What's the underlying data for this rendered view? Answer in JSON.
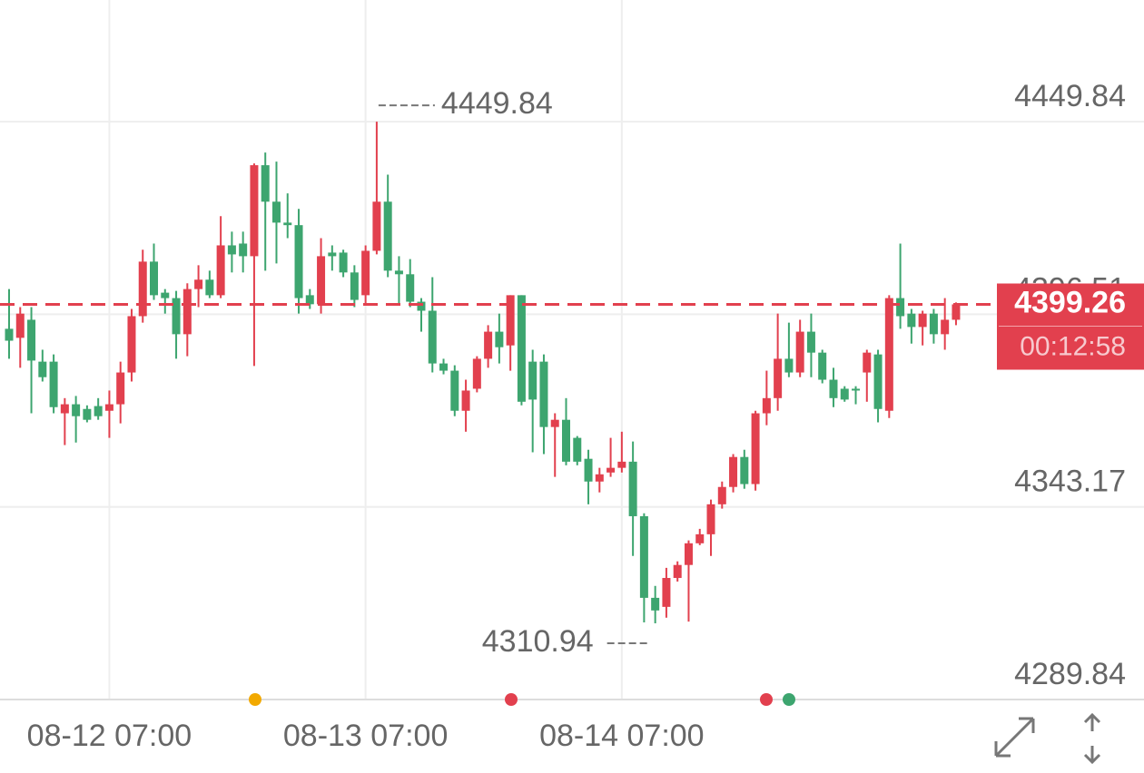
{
  "chart_data": {
    "type": "candlestick",
    "categories": [
      null,
      null,
      null,
      null,
      null,
      null,
      null,
      null,
      null,
      "08-12 07:00",
      null,
      null,
      null,
      null,
      null,
      null,
      null,
      null,
      null,
      null,
      null,
      null,
      null,
      null,
      null,
      null,
      null,
      null,
      null,
      null,
      null,
      null,
      "08-13 07:00",
      null,
      null,
      null,
      null,
      null,
      null,
      null,
      null,
      null,
      null,
      null,
      null,
      null,
      null,
      null,
      null,
      null,
      null,
      null,
      null,
      null,
      null,
      "08-14 07:00",
      null,
      null,
      null,
      null,
      null,
      null,
      null,
      null,
      null,
      null,
      null,
      null,
      null,
      null,
      null,
      null,
      null,
      null,
      null,
      null,
      null,
      null,
      null,
      null,
      null,
      null,
      null,
      null,
      null,
      null
    ],
    "open": [
      4392.5,
      4390.0,
      4395.0,
      4383.4,
      4383.4,
      4369.1,
      4371.6,
      4370.3,
      4371.1,
      4369.8,
      4371.6,
      4380.4,
      4396.0,
      4411.1,
      4402.5,
      4401.0,
      4391.0,
      4403.5,
      4406.1,
      4401.8,
      4415.6,
      4416.1,
      4412.6,
      4437.8,
      4427.7,
      4421.9,
      4421.2,
      4401.8,
      4399.3,
      4413.6,
      4413.6,
      4408.1,
      4401.8,
      4414.1,
      4427.7,
      4408.6,
      4407.6,
      4400.0,
      4397.5,
      4382.9,
      4380.9,
      4369.8,
      4375.9,
      4384.2,
      4391.7,
      4387.9,
      4401.8,
      4383.4,
      4383.4,
      4365.3,
      4367.3,
      4362.3,
      4356.5,
      4350.2,
      4352.7,
      4354.0,
      4355.7,
      4340.6,
      4318.0,
      4315.5,
      4323.5,
      4327.1,
      4333.1,
      4335.6,
      4343.9,
      4348.7,
      4357.0,
      4349.5,
      4369.1,
      4373.3,
      4384.2,
      4380.4,
      4391.7,
      4385.9,
      4378.4,
      4375.9,
      4375.9,
      4380.4,
      4385.4,
      4369.8,
      4401.0,
      4396.7,
      4393.0,
      4396.7,
      4391.0,
      4395.0
    ],
    "high": [
      4403.5,
      4398.5,
      4398.5,
      4386.7,
      4385.4,
      4373.3,
      4373.9,
      4371.3,
      4373.3,
      4375.4,
      4383.4,
      4398.0,
      4414.4,
      4416.1,
      4403.5,
      4403.0,
      4405.1,
      4410.1,
      4408.6,
      4423.7,
      4419.4,
      4419.4,
      4438.3,
      4441.3,
      4438.8,
      4430.0,
      4425.7,
      4403.5,
      4417.6,
      4415.6,
      4414.4,
      4410.1,
      4415.6,
      4449.84,
      4435.2,
      4412.6,
      4411.8,
      4401.0,
      4406.8,
      4384.2,
      4382.4,
      4378.4,
      4384.9,
      4393.5,
      4396.7,
      4401.8,
      4401.8,
      4386.7,
      4385.4,
      4369.1,
      4373.3,
      4362.8,
      4359.0,
      4354.0,
      4362.3,
      4364.0,
      4361.3,
      4341.4,
      4321.3,
      4326.3,
      4328.1,
      4333.9,
      4337.1,
      4345.2,
      4350.2,
      4357.8,
      4359.0,
      4369.8,
      4380.9,
      4396.7,
      4394.2,
      4395.0,
      4396.7,
      4386.7,
      4381.7,
      4376.6,
      4376.6,
      4386.7,
      4386.7,
      4401.8,
      4416.1,
      4398.0,
      4397.5,
      4398.0,
      4401.0,
      4399.8
    ],
    "low": [
      4384.2,
      4381.7,
      4369.1,
      4377.9,
      4369.1,
      4360.3,
      4361.0,
      4366.6,
      4367.3,
      4362.3,
      4366.3,
      4377.9,
      4394.2,
      4400.5,
      4396.7,
      4384.2,
      4384.9,
      4398.5,
      4401.0,
      4401.0,
      4408.1,
      4408.1,
      4382.2,
      4408.6,
      4410.6,
      4417.6,
      4396.7,
      4398.0,
      4396.7,
      4408.6,
      4406.8,
      4398.5,
      4399.3,
      4413.1,
      4406.8,
      4399.3,
      4398.5,
      4391.7,
      4380.4,
      4379.9,
      4368.3,
      4364.0,
      4374.9,
      4381.7,
      4382.9,
      4380.9,
      4371.3,
      4358.3,
      4357.8,
      4351.5,
      4354.7,
      4354.7,
      4343.9,
      4347.2,
      4351.5,
      4352.7,
      4329.6,
      4311.2,
      4310.94,
      4312.5,
      4322.5,
      4311.4,
      4332.59,
      4329.6,
      4342.7,
      4347.2,
      4348.2,
      4347.7,
      4365.8,
      4369.8,
      4379.1,
      4379.1,
      4379.1,
      4377.4,
      4370.8,
      4372.3,
      4371.6,
      4372.3,
      4366.6,
      4367.8,
      4392.5,
      4388.4,
      4387.9,
      4388.4,
      4386.7,
      4393.5
    ],
    "close": [
      4389.2,
      4396.7,
      4383.7,
      4379.1,
      4370.8,
      4371.6,
      4368.3,
      4367.3,
      4368.3,
      4371.6,
      4380.4,
      4396.0,
      4411.1,
      4401.8,
      4401.0,
      4391.0,
      4403.5,
      4406.1,
      4401.8,
      4415.6,
      4413.1,
      4412.6,
      4437.8,
      4427.7,
      4421.9,
      4421.2,
      4401.0,
      4399.3,
      4412.6,
      4412.6,
      4408.1,
      4400.5,
      4414.1,
      4427.7,
      4408.6,
      4407.6,
      4400.0,
      4397.5,
      4382.9,
      4380.9,
      4369.8,
      4375.4,
      4384.2,
      4391.7,
      4387.4,
      4401.8,
      4372.3,
      4372.9,
      4365.3,
      4367.3,
      4355.7,
      4355.7,
      4350.2,
      4352.2,
      4354.0,
      4355.7,
      4340.6,
      4318.0,
      4314.5,
      4323.5,
      4327.1,
      4333.1,
      4335.6,
      4343.9,
      4348.7,
      4357.0,
      4349.5,
      4369.1,
      4373.3,
      4384.2,
      4380.4,
      4391.7,
      4385.9,
      4378.4,
      4373.3,
      4372.9,
      4375.4,
      4385.9,
      4370.3,
      4401.0,
      4396.0,
      4393.0,
      4396.7,
      4391.0,
      4395.0,
      4399.26
    ],
    "up_color": "#e2404e",
    "down_color": "#3da56f",
    "ylim": [
      4289.84,
      4483.55
    ],
    "yticks": [
      4289.84,
      4343.17,
      4396.51,
      4449.84
    ],
    "grid": true,
    "countdown": "00:12:58"
  }
}
